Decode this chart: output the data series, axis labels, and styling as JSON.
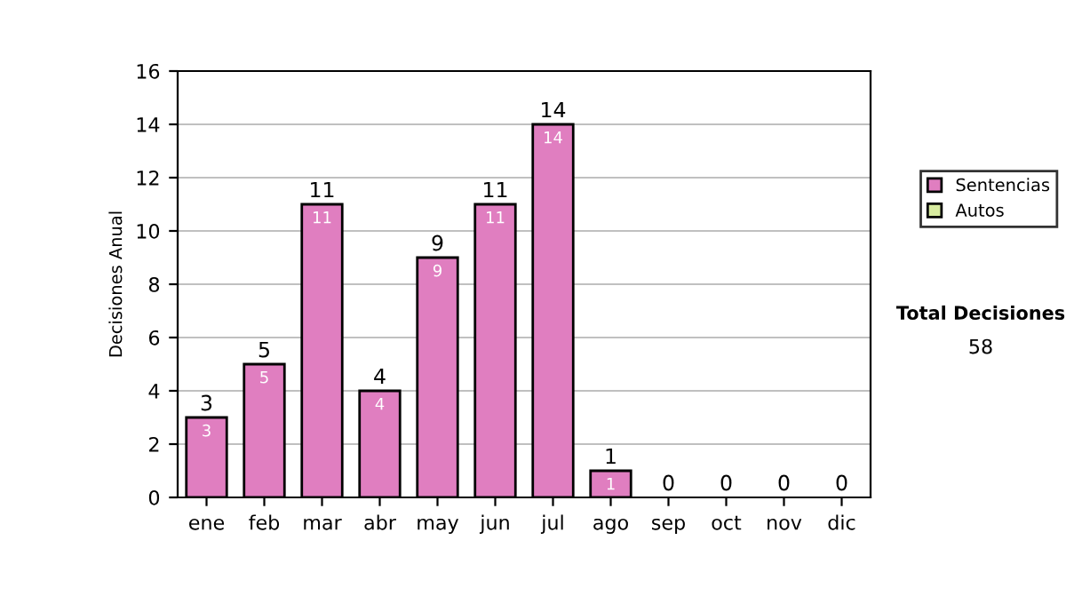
{
  "chart_data": {
    "type": "bar",
    "stacked": true,
    "ylabel": "Decisiones Anual",
    "categories": [
      "ene",
      "feb",
      "mar",
      "abr",
      "may",
      "jun",
      "jul",
      "ago",
      "sep",
      "oct",
      "nov",
      "dic"
    ],
    "series": [
      {
        "name": "Sentencias",
        "color": "#e07ec0",
        "values": [
          3,
          5,
          11,
          4,
          9,
          11,
          14,
          1,
          0,
          0,
          0,
          0
        ],
        "value_labels": [
          "3",
          "5",
          "11",
          "4",
          "9",
          "11",
          "14",
          "1",
          null,
          null,
          null,
          null
        ]
      },
      {
        "name": "Autos",
        "color": "#d8eca0",
        "values": [
          0,
          0,
          0,
          0,
          0,
          0,
          0,
          0,
          0,
          0,
          0,
          0
        ]
      }
    ],
    "totals": [
      "3",
      "5",
      "11",
      "4",
      "9",
      "11",
      "14",
      "1",
      "0",
      "0",
      "0",
      "0"
    ],
    "ylim": [
      0,
      16
    ],
    "yticks": [
      0,
      2,
      4,
      6,
      8,
      10,
      12,
      14,
      16
    ],
    "grid": "y",
    "legend": "right",
    "annotations": [
      "Total Decisiones",
      "58"
    ]
  }
}
